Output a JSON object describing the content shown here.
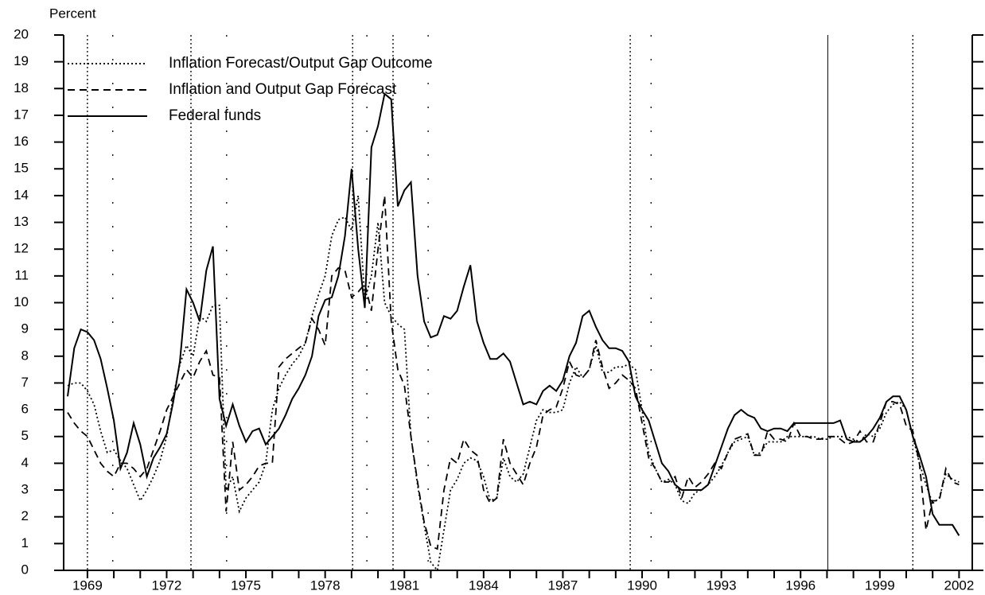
{
  "chart_data": {
    "type": "line",
    "y_axis_label": "Percent",
    "x": [
      1968.25,
      1968.5,
      1968.75,
      1969,
      1969.25,
      1969.5,
      1969.75,
      1970,
      1970.25,
      1970.5,
      1970.75,
      1971,
      1971.25,
      1971.5,
      1971.75,
      1972,
      1972.25,
      1972.5,
      1972.75,
      1973,
      1973.25,
      1973.5,
      1973.75,
      1974,
      1974.25,
      1974.5,
      1974.75,
      1975,
      1975.25,
      1975.5,
      1975.75,
      1976,
      1976.25,
      1976.5,
      1976.75,
      1977,
      1977.25,
      1977.5,
      1977.75,
      1978,
      1978.25,
      1978.5,
      1978.75,
      1979,
      1979.25,
      1979.5,
      1979.75,
      1980,
      1980.25,
      1980.5,
      1980.75,
      1981,
      1981.25,
      1981.5,
      1981.75,
      1982,
      1982.25,
      1982.5,
      1982.75,
      1983,
      1983.25,
      1983.5,
      1983.75,
      1984,
      1984.25,
      1984.5,
      1984.75,
      1985,
      1985.25,
      1985.5,
      1985.75,
      1986,
      1986.25,
      1986.5,
      1986.75,
      1987,
      1987.25,
      1987.5,
      1987.75,
      1988,
      1988.25,
      1988.5,
      1988.75,
      1989,
      1989.25,
      1989.5,
      1989.75,
      1990,
      1990.25,
      1990.5,
      1990.75,
      1991,
      1991.25,
      1991.5,
      1991.75,
      1992,
      1992.25,
      1992.5,
      1992.75,
      1993,
      1993.25,
      1993.5,
      1993.75,
      1994,
      1994.25,
      1994.5,
      1994.75,
      1995,
      1995.25,
      1995.5,
      1995.75,
      1996,
      1996.25,
      1996.5,
      1996.75,
      1997,
      1997.25,
      1997.5,
      1997.75,
      1998,
      1998.25,
      1998.5,
      1998.75,
      1999,
      1999.25,
      1999.5,
      1999.75,
      2000,
      2000.25,
      2000.5,
      2000.75,
      2001,
      2001.25,
      2001.5,
      2001.75,
      2002
    ],
    "series": [
      {
        "name": "Inflation Forecast/Output Gap Outcome",
        "color": "#000000",
        "line_style": "dotted",
        "values": [
          6.9,
          7.0,
          7.0,
          6.7,
          6.2,
          5.2,
          4.4,
          4.5,
          4.1,
          3.8,
          3.2,
          2.6,
          3.0,
          3.5,
          4.1,
          5.0,
          6.5,
          7.7,
          8.4,
          8.0,
          9.5,
          9.3,
          9.9,
          9.9,
          3.0,
          3.5,
          2.2,
          2.7,
          3.0,
          3.3,
          4.0,
          6.0,
          6.8,
          7.3,
          7.7,
          8.0,
          8.5,
          9.5,
          10.3,
          11.0,
          12.5,
          13.1,
          13.2,
          12.7,
          14.0,
          10.1,
          11.0,
          13.0,
          10.0,
          9.5,
          9.2,
          9.0,
          5.0,
          3.2,
          1.7,
          0.3,
          0.0,
          1.5,
          3.0,
          3.4,
          4.0,
          4.2,
          4.1,
          3.5,
          2.6,
          2.7,
          4.2,
          3.5,
          3.3,
          3.6,
          4.6,
          5.6,
          6.0,
          5.9,
          5.9,
          6.0,
          7.0,
          7.6,
          7.2,
          7.5,
          8.4,
          7.4,
          7.4,
          7.6,
          7.6,
          7.7,
          7.5,
          6.0,
          4.4,
          3.8,
          3.3,
          3.4,
          3.2,
          2.6,
          2.5,
          2.9,
          3.0,
          3.2,
          3.5,
          3.9,
          4.4,
          4.8,
          4.9,
          5.0,
          4.3,
          4.4,
          4.8,
          4.8,
          4.8,
          5.0,
          5.0,
          5.0,
          5.0,
          5.0,
          4.9,
          4.9,
          5.0,
          5.0,
          5.0,
          4.9,
          4.8,
          5.1,
          5.0,
          5.3,
          5.9,
          6.2,
          6.3,
          6.0,
          5.0,
          4.0,
          3.2,
          2.5,
          2.7,
          3.6,
          3.4,
          3.3
        ]
      },
      {
        "name": "Inflation and Output Gap Forecast",
        "color": "#000000",
        "line_style": "dashed",
        "values": [
          5.9,
          5.5,
          5.2,
          5.0,
          4.5,
          4.0,
          3.7,
          3.5,
          4.0,
          4.0,
          3.8,
          3.5,
          3.8,
          4.5,
          5.2,
          6.0,
          6.5,
          7.0,
          7.5,
          7.2,
          7.8,
          8.2,
          7.3,
          7.2,
          2.2,
          4.8,
          3.0,
          3.2,
          3.5,
          3.9,
          4.0,
          4.0,
          7.6,
          7.9,
          8.1,
          8.3,
          8.5,
          9.4,
          9.0,
          8.4,
          11.0,
          11.3,
          11.2,
          10.2,
          10.4,
          10.7,
          9.7,
          12.0,
          14.0,
          9.3,
          7.5,
          6.9,
          5.0,
          3.3,
          1.8,
          0.9,
          0.8,
          3.0,
          4.2,
          4.0,
          4.9,
          4.5,
          4.3,
          3.0,
          2.5,
          2.7,
          4.9,
          4.0,
          3.6,
          3.2,
          4.0,
          4.6,
          5.8,
          6.0,
          6.1,
          6.8,
          7.8,
          7.3,
          7.2,
          7.5,
          8.6,
          7.6,
          6.8,
          7.0,
          7.3,
          7.1,
          6.8,
          5.5,
          4.2,
          3.8,
          3.3,
          3.3,
          3.5,
          2.7,
          3.5,
          3.1,
          3.3,
          3.6,
          4.0,
          3.8,
          4.4,
          4.9,
          5.0,
          5.1,
          4.3,
          4.3,
          5.2,
          4.9,
          4.9,
          4.8,
          5.5,
          5.0,
          5.0,
          4.9,
          4.9,
          5.0,
          5.0,
          4.9,
          4.7,
          4.8,
          5.2,
          4.8,
          4.8,
          5.5,
          6.3,
          6.3,
          6.2,
          5.4,
          5.2,
          4.0,
          1.5,
          2.6,
          2.6,
          3.8,
          3.3,
          3.2
        ]
      },
      {
        "name": "Federal funds",
        "color": "#000000",
        "line_style": "solid",
        "values": [
          6.5,
          8.3,
          9.0,
          8.9,
          8.6,
          7.9,
          6.8,
          5.6,
          3.8,
          4.4,
          5.5,
          4.7,
          3.5,
          4.2,
          4.6,
          5.1,
          6.3,
          7.8,
          10.5,
          10.0,
          9.3,
          11.2,
          12.1,
          6.4,
          5.4,
          6.2,
          5.4,
          4.8,
          5.2,
          5.3,
          4.7,
          5.0,
          5.3,
          5.8,
          6.4,
          6.8,
          7.3,
          8.0,
          9.5,
          10.1,
          10.2,
          11.0,
          12.5,
          15.0,
          12.0,
          9.8,
          15.8,
          16.6,
          17.8,
          17.6,
          13.6,
          14.2,
          14.5,
          11.0,
          9.3,
          8.7,
          8.8,
          9.5,
          9.4,
          9.7,
          10.6,
          11.4,
          9.3,
          8.5,
          7.9,
          7.9,
          8.1,
          7.8,
          7.0,
          6.2,
          6.3,
          6.2,
          6.7,
          6.9,
          6.7,
          7.1,
          8.0,
          8.5,
          9.5,
          9.7,
          9.1,
          8.6,
          8.3,
          8.3,
          8.2,
          7.8,
          6.5,
          6.0,
          5.6,
          4.8,
          4.0,
          3.7,
          3.2,
          3.0,
          3.0,
          3.0,
          3.0,
          3.2,
          3.9,
          4.6,
          5.3,
          5.8,
          6.0,
          5.8,
          5.7,
          5.3,
          5.2,
          5.3,
          5.3,
          5.2,
          5.5,
          5.5,
          5.5,
          5.5,
          5.5,
          5.5,
          5.5,
          5.6,
          4.9,
          4.8,
          4.8,
          5.0,
          5.3,
          5.7,
          6.3,
          6.5,
          6.5,
          6.0,
          5.0,
          4.3,
          3.5,
          2.1,
          1.7,
          1.7,
          1.7,
          1.3
        ]
      }
    ],
    "vlines": [
      {
        "x": 1969.0,
        "style": "dotted"
      },
      {
        "x": 1969.96,
        "style": "sparse"
      },
      {
        "x": 1972.92,
        "style": "dotted"
      },
      {
        "x": 1974.27,
        "style": "sparse"
      },
      {
        "x": 1979.04,
        "style": "dotted"
      },
      {
        "x": 1979.58,
        "style": "sparse"
      },
      {
        "x": 1980.57,
        "style": "dotted"
      },
      {
        "x": 1981.9,
        "style": "sparse"
      },
      {
        "x": 1989.55,
        "style": "dotted"
      },
      {
        "x": 1990.34,
        "style": "sparse"
      },
      {
        "x": 1997.03,
        "style": "solid"
      },
      {
        "x": 2000.25,
        "style": "dotted"
      }
    ],
    "xlim": [
      1968.1,
      2002.5
    ],
    "xticks": [
      1969,
      1972,
      1975,
      1978,
      1981,
      1984,
      1987,
      1990,
      1993,
      1996,
      1999,
      2002
    ],
    "xminorticks": [
      1970,
      1971,
      1973,
      1974,
      1976,
      1977,
      1979,
      1980,
      1982,
      1983,
      1985,
      1986,
      1988,
      1989,
      1991,
      1992,
      1994,
      1995,
      1997,
      1998,
      2000,
      2001
    ],
    "ylim": [
      0,
      20
    ],
    "yticks": [
      0,
      1,
      2,
      3,
      4,
      5,
      6,
      7,
      8,
      9,
      10,
      11,
      12,
      13,
      14,
      15,
      16,
      17,
      18,
      19,
      20
    ],
    "grid": false,
    "legend": "upper left"
  }
}
